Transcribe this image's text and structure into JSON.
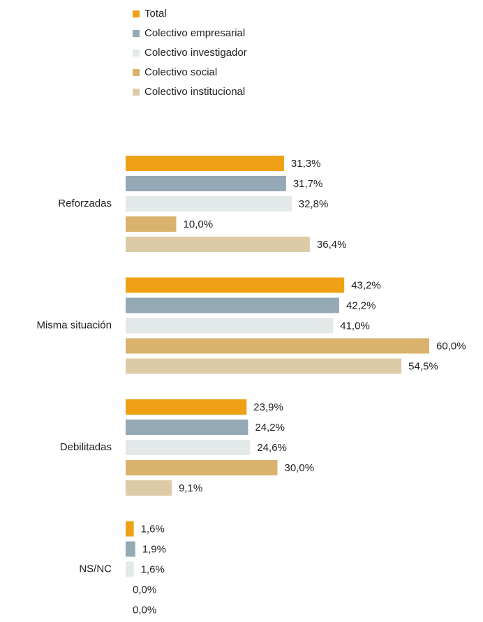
{
  "chart_data": {
    "type": "bar",
    "orientation": "horizontal",
    "categories": [
      "Reforzadas",
      "Misma situación",
      "Debilitadas",
      "NS/NC"
    ],
    "series": [
      {
        "name": "Total",
        "color": "#f0a015",
        "values": [
          31.3,
          43.2,
          23.9,
          1.6
        ],
        "value_labels": [
          "31,3%",
          "43,2%",
          "23,9%",
          "1,6%"
        ]
      },
      {
        "name": "Colectivo empresarial",
        "color": "#94a8b6",
        "values": [
          31.7,
          42.2,
          24.2,
          1.9
        ],
        "value_labels": [
          "31,7%",
          "42,2%",
          "24,2%",
          "1,9%"
        ]
      },
      {
        "name": "Colectivo investigador",
        "color": "#e3e8e9",
        "values": [
          32.8,
          41.0,
          24.6,
          1.6
        ],
        "value_labels": [
          "32,8%",
          "41,0%",
          "24,6%",
          "1,6%"
        ]
      },
      {
        "name": "Colectivo social",
        "color": "#d9b26c",
        "values": [
          10.0,
          60.0,
          30.0,
          0.0
        ],
        "value_labels": [
          "10,0%",
          "60,0%",
          "30,0%",
          "0,0%"
        ]
      },
      {
        "name": "Colectivo institucional",
        "color": "#ddcba8",
        "values": [
          36.4,
          54.5,
          9.1,
          0.0
        ],
        "value_labels": [
          "36,4%",
          "54,5%",
          "9,1%",
          "0,0%"
        ]
      }
    ],
    "legend": "top"
  }
}
